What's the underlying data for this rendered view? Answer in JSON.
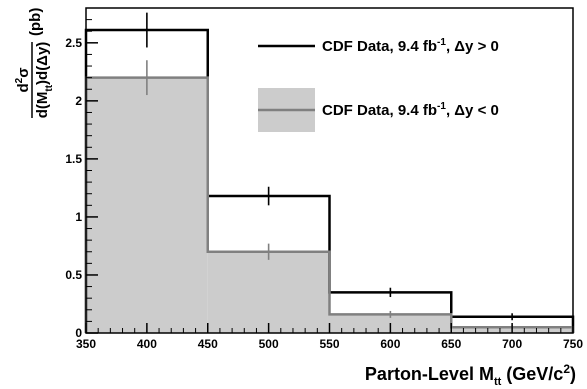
{
  "chart_data": {
    "type": "histogram",
    "bin_edges": [
      350,
      450,
      550,
      650,
      750
    ],
    "x": [
      400,
      500,
      600,
      700
    ],
    "xlim": [
      350,
      750
    ],
    "ylim": [
      0,
      2.8
    ],
    "x_ticks": [
      350,
      400,
      450,
      500,
      550,
      600,
      650,
      700,
      750
    ],
    "y_ticks": [
      0,
      0.5,
      1,
      1.5,
      2,
      2.5
    ],
    "y_tick_labels": [
      "0",
      "0.5",
      "1",
      "1.5",
      "2",
      "2.5"
    ],
    "xlabel": {
      "main": "Parton-Level M",
      "sub": "tt",
      "unit_open": " (GeV/c",
      "unit_sup": "2",
      "unit_close": ")"
    },
    "ylabel": {
      "numerator": "d",
      "numerator_sup": "2",
      "numerator_sym": "σ",
      "denominator": "d(M",
      "denominator_sub": "tt",
      "denominator_tail": ")d(Δy)",
      "unit": "(pb)"
    },
    "grid": false,
    "legend_position": "top-right",
    "series": [
      {
        "name": "CDF Data, 9.4 fb-1, Δy > 0",
        "legend": {
          "pre": "CDF Data, 9.4 fb",
          "sup": "-1",
          "post": ", Δy > 0"
        },
        "values": [
          2.61,
          1.18,
          0.35,
          0.14
        ],
        "errors": [
          0.15,
          0.08,
          0.04,
          0.03
        ],
        "style": "line",
        "color": "#000000"
      },
      {
        "name": "CDF Data, 9.4 fb-1, Δy < 0",
        "legend": {
          "pre": "CDF Data, 9.4 fb",
          "sup": "-1",
          "post": ", Δy < 0"
        },
        "values": [
          2.2,
          0.7,
          0.16,
          0.05
        ],
        "errors": [
          0.15,
          0.07,
          0.03,
          0.02
        ],
        "style": "filled",
        "color": "#808080",
        "fill": "#cccccc"
      }
    ]
  }
}
